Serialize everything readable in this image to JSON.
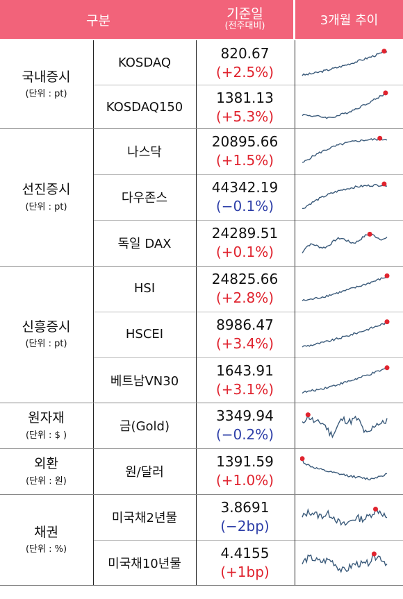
{
  "header": {
    "category": "구분",
    "base_date": "기준일",
    "base_sub": "(전주대비)",
    "trend": "3개월 추이"
  },
  "colors": {
    "header_bg": "#f2637a",
    "up": "#e0242f",
    "down": "#2e3fa8",
    "line": "#3a5a7a",
    "marker": "#e0242f"
  },
  "groups": [
    {
      "name": "국내증시",
      "unit": "(단위 : pt)"
    },
    {
      "name": "선진증시",
      "unit": "(단위 : pt)"
    },
    {
      "name": "신흥증시",
      "unit": "(단위 : pt)"
    },
    {
      "name": "원자재",
      "unit": "(단위 : $ )"
    },
    {
      "name": "외환",
      "unit": "(단위 : 원)"
    },
    {
      "name": "채권",
      "unit": "(단위 : %)"
    }
  ],
  "rows": [
    {
      "name": "KOSDAQ",
      "value": "820.67",
      "change": "(+2.5%)",
      "dir": "up",
      "trend": "rise"
    },
    {
      "name": "KOSDAQ150",
      "value": "1381.13",
      "change": "(+5.3%)",
      "dir": "up",
      "trend": "dip-rise"
    },
    {
      "name": "나스닥",
      "value": "20895.66",
      "change": "(+1.5%)",
      "dir": "up",
      "trend": "rise-flat"
    },
    {
      "name": "다우존스",
      "value": "44342.19",
      "change": "(−0.1%)",
      "dir": "down",
      "trend": "rise-flat"
    },
    {
      "name": "독일 DAX",
      "value": "24289.51",
      "change": "(+0.1%)",
      "dir": "up",
      "trend": "rise-choppy"
    },
    {
      "name": "HSI",
      "value": "24825.66",
      "change": "(+2.8%)",
      "dir": "up",
      "trend": "rise"
    },
    {
      "name": "HSCEI",
      "value": "8986.47",
      "change": "(+3.4%)",
      "dir": "up",
      "trend": "rise"
    },
    {
      "name": "베트남VN30",
      "value": "1643.91",
      "change": "(+3.1%)",
      "dir": "up",
      "trend": "rise"
    },
    {
      "name": "금(Gold)",
      "value": "3349.94",
      "change": "(−0.2%)",
      "dir": "down",
      "trend": "volatile"
    },
    {
      "name": "원/달러",
      "value": "1391.59",
      "change": "(+1.0%)",
      "dir": "up",
      "trend": "fall"
    },
    {
      "name": "미국채2년물",
      "value": "3.8691",
      "change": "(−2bp)",
      "dir": "down",
      "trend": "volatile-flat"
    },
    {
      "name": "미국채10년물",
      "value": "4.4155",
      "change": "(+1bp)",
      "dir": "up",
      "trend": "volatile-flat"
    }
  ]
}
